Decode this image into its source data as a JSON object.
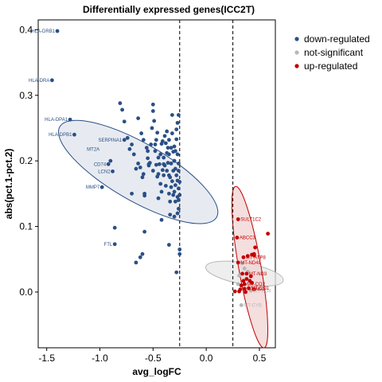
{
  "chart_data": {
    "type": "scatter",
    "title": "Differentially expressed genes(ICC2T)",
    "xlabel": "avg_logFC",
    "ylabel": "abs(pct.1-pct.2)",
    "xlim": [
      -1.58,
      0.65
    ],
    "ylim": [
      -0.085,
      0.415
    ],
    "x_ticks": [
      -1.5,
      -1.0,
      -0.5,
      0.0,
      0.5
    ],
    "x_tick_labels": [
      "-1.5",
      "-1.0",
      "-0.5",
      "0.0",
      "0.5"
    ],
    "y_ticks": [
      0.0,
      0.1,
      0.2,
      0.3,
      0.4
    ],
    "y_tick_labels": [
      "0.0",
      "0.1",
      "0.2",
      "0.3",
      "0.4"
    ],
    "vlines": [
      -0.25,
      0.25
    ],
    "grid": false,
    "legend_position": "right",
    "series": [
      {
        "name": "down-regulated",
        "color": "#2b4f86",
        "points": [
          [
            -1.4,
            0.398
          ],
          [
            -1.45,
            0.323
          ],
          [
            -1.28,
            0.263
          ],
          [
            -1.24,
            0.24
          ],
          [
            -0.98,
            0.16
          ],
          [
            -0.86,
            0.098
          ],
          [
            -0.86,
            0.073
          ],
          [
            -0.81,
            0.288
          ],
          [
            -0.79,
            0.278
          ],
          [
            -0.77,
            0.26
          ],
          [
            -0.77,
            0.232
          ],
          [
            -0.74,
            0.235
          ],
          [
            -0.72,
            0.218
          ],
          [
            -0.7,
            0.225
          ],
          [
            -0.68,
            0.21
          ],
          [
            -0.66,
            0.188
          ],
          [
            -0.64,
            0.196
          ],
          [
            -0.64,
            0.265
          ],
          [
            -0.61,
            0.242
          ],
          [
            -0.59,
            0.232
          ],
          [
            -0.59,
            0.18
          ],
          [
            -0.58,
            0.15
          ],
          [
            -0.58,
            0.147
          ],
          [
            -0.56,
            0.22
          ],
          [
            -0.55,
            0.204
          ],
          [
            -0.54,
            0.193
          ],
          [
            -0.53,
            0.197
          ],
          [
            -0.52,
            0.225
          ],
          [
            -0.51,
            0.25
          ],
          [
            -0.5,
            0.276
          ],
          [
            -0.5,
            0.286
          ],
          [
            -0.49,
            0.261
          ],
          [
            -0.48,
            0.215
          ],
          [
            -0.47,
            0.232
          ],
          [
            -0.47,
            0.194
          ],
          [
            -0.46,
            0.243
          ],
          [
            -0.46,
            0.176
          ],
          [
            -0.45,
            0.18
          ],
          [
            -0.45,
            0.143
          ],
          [
            -0.44,
            0.195
          ],
          [
            -0.43,
            0.21
          ],
          [
            -0.42,
            0.226
          ],
          [
            -0.42,
            0.153
          ],
          [
            -0.41,
            0.186
          ],
          [
            -0.4,
            0.178
          ],
          [
            -0.4,
            0.205
          ],
          [
            -0.39,
            0.238
          ],
          [
            -0.39,
            0.193
          ],
          [
            -0.38,
            0.227
          ],
          [
            -0.38,
            0.162
          ],
          [
            -0.37,
            0.212
          ],
          [
            -0.37,
            0.245
          ],
          [
            -0.36,
            0.197
          ],
          [
            -0.35,
            0.232
          ],
          [
            -0.35,
            0.178
          ],
          [
            -0.34,
            0.138
          ],
          [
            -0.34,
            0.118
          ],
          [
            -0.33,
            0.22
          ],
          [
            -0.33,
            0.196
          ],
          [
            -0.32,
            0.242
          ],
          [
            -0.32,
            0.169
          ],
          [
            -0.31,
            0.185
          ],
          [
            -0.31,
            0.214
          ],
          [
            -0.3,
            0.222
          ],
          [
            -0.3,
            0.2
          ],
          [
            -0.29,
            0.163
          ],
          [
            -0.29,
            0.188
          ],
          [
            -0.28,
            0.233
          ],
          [
            -0.28,
            0.178
          ],
          [
            -0.27,
            0.21
          ],
          [
            -0.27,
            0.17
          ],
          [
            -0.26,
            0.158
          ],
          [
            -0.26,
            0.196
          ],
          [
            -0.26,
            0.14
          ],
          [
            -0.35,
            0.21
          ],
          [
            -0.36,
            0.22
          ],
          [
            -0.4,
            0.195
          ],
          [
            -0.48,
            0.225
          ],
          [
            -0.43,
            0.165
          ],
          [
            -0.3,
            0.153
          ],
          [
            -0.29,
            0.138
          ],
          [
            -0.26,
            0.127
          ],
          [
            -0.27,
            0.12
          ],
          [
            -0.3,
            0.115
          ],
          [
            -0.33,
            0.16
          ],
          [
            -0.27,
            0.258
          ],
          [
            -0.28,
            0.248
          ],
          [
            -0.32,
            0.27
          ],
          [
            -0.26,
            0.27
          ],
          [
            -0.29,
            0.215
          ],
          [
            -0.41,
            0.23
          ],
          [
            -0.45,
            0.205
          ],
          [
            -0.6,
            0.175
          ],
          [
            -0.7,
            0.15
          ],
          [
            -0.9,
            0.2
          ],
          [
            -0.88,
            0.184
          ],
          [
            -0.92,
            0.195
          ],
          [
            -0.58,
            0.092
          ],
          [
            -0.42,
            0.11
          ],
          [
            -0.35,
            0.072
          ],
          [
            -0.25,
            0.065
          ],
          [
            -0.25,
            0.058
          ],
          [
            -0.28,
            0.03
          ],
          [
            -0.6,
            0.058
          ],
          [
            -0.62,
            0.053
          ],
          [
            -0.66,
            0.045
          ],
          [
            -0.3,
            0.2
          ],
          [
            -0.55,
            0.215
          ],
          [
            -0.5,
            0.185
          ],
          [
            -0.62,
            0.19
          ],
          [
            -0.54,
            0.195
          ],
          [
            -0.37,
            0.185
          ],
          [
            -0.34,
            0.175
          ],
          [
            -0.26,
            0.185
          ],
          [
            -0.27,
            0.145
          ],
          [
            -0.25,
            0.168
          ],
          [
            -0.25,
            0.148
          ],
          [
            -0.31,
            0.148
          ],
          [
            -0.35,
            0.15
          ]
        ]
      },
      {
        "name": "not-significant",
        "color": "#b8b8b8",
        "points": [
          [
            0.34,
            0.044
          ],
          [
            0.36,
            0.036
          ],
          [
            0.39,
            0.031
          ],
          [
            0.31,
            0.025
          ],
          [
            0.3,
            0.012
          ],
          [
            0.42,
            0.002
          ],
          [
            0.33,
            -0.02
          ]
        ]
      },
      {
        "name": "up-regulated",
        "color": "#c00000",
        "points": [
          [
            0.3,
            0.111
          ],
          [
            0.29,
            0.083
          ],
          [
            0.58,
            0.089
          ],
          [
            0.46,
            0.068
          ],
          [
            0.45,
            0.058
          ],
          [
            0.45,
            0.056
          ],
          [
            0.43,
            0.057
          ],
          [
            0.35,
            0.053
          ],
          [
            0.39,
            0.055
          ],
          [
            0.3,
            0.045
          ],
          [
            0.38,
            0.028
          ],
          [
            0.42,
            0.024
          ],
          [
            0.38,
            0.02
          ],
          [
            0.34,
            0.028
          ],
          [
            0.35,
            0.017
          ],
          [
            0.36,
            0.012
          ],
          [
            0.33,
            0.01
          ],
          [
            0.36,
            0.005
          ],
          [
            0.4,
            0.006
          ],
          [
            0.45,
            0.004
          ],
          [
            0.43,
            0.014
          ],
          [
            0.31,
            0.001
          ],
          [
            0.27,
            0.001
          ],
          [
            0.37,
            0.0
          ],
          [
            0.32,
            0.004
          ],
          [
            0.41,
            0.017
          ]
        ]
      }
    ],
    "point_labels": [
      {
        "text": "HLA-DRB1",
        "x": -1.4,
        "y": 0.398,
        "series": "down-regulated"
      },
      {
        "text": "HLA-DRA",
        "x": -1.45,
        "y": 0.323,
        "series": "down-regulated"
      },
      {
        "text": "HLA-DPA1",
        "x": -1.28,
        "y": 0.263,
        "series": "down-regulated"
      },
      {
        "text": "HLA-DPB1",
        "x": -1.24,
        "y": 0.24,
        "series": "down-regulated"
      },
      {
        "text": "SERPINA1",
        "x": -0.77,
        "y": 0.232,
        "series": "down-regulated"
      },
      {
        "text": "MT2A",
        "x": -0.98,
        "y": 0.218,
        "series": "down-regulated"
      },
      {
        "text": "CD74",
        "x": -0.92,
        "y": 0.195,
        "series": "down-regulated"
      },
      {
        "text": "LCN2",
        "x": -0.88,
        "y": 0.184,
        "series": "down-regulated"
      },
      {
        "text": "MMP7",
        "x": -0.98,
        "y": 0.16,
        "series": "down-regulated"
      },
      {
        "text": "FTL",
        "x": -0.86,
        "y": 0.073,
        "series": "down-regulated"
      },
      {
        "text": "SULT1C2",
        "x": 0.3,
        "y": 0.111,
        "series": "up-regulated"
      },
      {
        "text": "ABCC3",
        "x": 0.29,
        "y": 0.083,
        "series": "up-regulated"
      },
      {
        "text": "MT-ATP8",
        "x": 0.35,
        "y": 0.053,
        "series": "up-regulated"
      },
      {
        "text": "MT-ND4L",
        "x": 0.3,
        "y": 0.045,
        "series": "up-regulated"
      },
      {
        "text": "MT-ND3",
        "x": 0.38,
        "y": 0.028,
        "series": "up-regulated"
      },
      {
        "text": "MT-CO2",
        "x": 0.36,
        "y": 0.012,
        "series": "up-regulated"
      },
      {
        "text": "MT-ND4",
        "x": 0.42,
        "y": 0.002,
        "series": "not-significant"
      },
      {
        "text": "MT-ND2",
        "x": 0.36,
        "y": 0.005,
        "series": "up-regulated"
      },
      {
        "text": "MT-CO1",
        "x": 0.4,
        "y": 0.006,
        "series": "up-regulated"
      },
      {
        "text": "MT-CYB",
        "x": 0.33,
        "y": -0.02,
        "series": "not-significant"
      }
    ],
    "ellipses": [
      {
        "series": "down-regulated",
        "cx": -0.64,
        "cy": 0.183,
        "rx": 0.27,
        "ry": 0.138,
        "angle_deg": 120,
        "fill": "#dfe4ec",
        "stroke": "#2b4f86"
      },
      {
        "series": "not-significant",
        "cx": 0.36,
        "cy": 0.028,
        "rx": 0.1,
        "ry": 0.06,
        "angle_deg": 100,
        "fill": "#e8e8e8",
        "stroke": "#b8b8b8"
      },
      {
        "series": "up-regulated",
        "cx": 0.41,
        "cy": 0.038,
        "rx": 0.105,
        "ry": 0.125,
        "angle_deg": 170,
        "fill": "#f1d3d3",
        "stroke": "#c00000"
      }
    ]
  }
}
